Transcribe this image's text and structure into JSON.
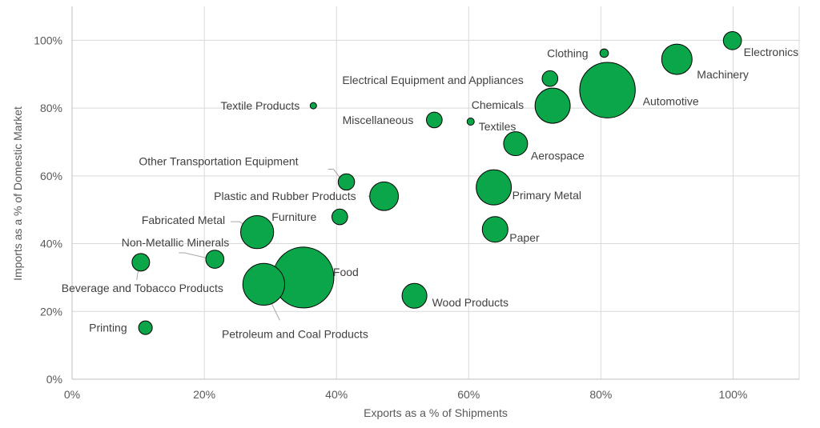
{
  "chart_data": {
    "type": "scatter",
    "bubble": true,
    "title": "",
    "xlabel": "Exports as a % of Shipments",
    "ylabel": "Imports as a % of Domestic Market",
    "xlim": [
      0,
      1.1
    ],
    "ylim": [
      0,
      1.1
    ],
    "x_ticks": [
      {
        "value": 0,
        "label": "0%"
      },
      {
        "value": 0.2,
        "label": "20%"
      },
      {
        "value": 0.4,
        "label": "40%"
      },
      {
        "value": 0.6,
        "label": "60%"
      },
      {
        "value": 0.8,
        "label": "80%"
      },
      {
        "value": 1.0,
        "label": "100%"
      }
    ],
    "y_ticks": [
      {
        "value": 0,
        "label": "0%"
      },
      {
        "value": 0.2,
        "label": "20%"
      },
      {
        "value": 0.4,
        "label": "40%"
      },
      {
        "value": 0.6,
        "label": "60%"
      },
      {
        "value": 0.8,
        "label": "80%"
      },
      {
        "value": 1.0,
        "label": "100%"
      }
    ],
    "grid": {
      "vertical": true,
      "horizontal": true
    },
    "bubble_color": "#0ca64a",
    "bubble_stroke": "#000000",
    "points": [
      {
        "name": "Electronics",
        "x": 0.999,
        "y": 0.999,
        "size": 1.6
      },
      {
        "name": "Machinery",
        "x": 0.915,
        "y": 0.944,
        "size": 4.5
      },
      {
        "name": "Clothing",
        "x": 0.805,
        "y": 0.962,
        "size": 0.35
      },
      {
        "name": "Automotive",
        "x": 0.81,
        "y": 0.853,
        "size": 15.0
      },
      {
        "name": "Electrical Equipment and Appliances",
        "x": 0.723,
        "y": 0.887,
        "size": 1.2
      },
      {
        "name": "Chemicals",
        "x": 0.727,
        "y": 0.807,
        "size": 6.0
      },
      {
        "name": "Textile Products",
        "x": 0.365,
        "y": 0.807,
        "size": 0.2
      },
      {
        "name": "Miscellaneous",
        "x": 0.548,
        "y": 0.765,
        "size": 1.2
      },
      {
        "name": "Textiles",
        "x": 0.603,
        "y": 0.76,
        "size": 0.25
      },
      {
        "name": "Aerospace",
        "x": 0.671,
        "y": 0.695,
        "size": 2.8
      },
      {
        "name": "Other Transportation Equipment",
        "x": 0.415,
        "y": 0.582,
        "size": 1.3
      },
      {
        "name": "Plastic and Rubber Products",
        "x": 0.472,
        "y": 0.54,
        "size": 4.0
      },
      {
        "name": "Primary Metal",
        "x": 0.638,
        "y": 0.566,
        "size": 6.0
      },
      {
        "name": "Furniture",
        "x": 0.405,
        "y": 0.479,
        "size": 1.2
      },
      {
        "name": "Fabricated Metal",
        "x": 0.28,
        "y": 0.434,
        "size": 5.3
      },
      {
        "name": "Paper",
        "x": 0.64,
        "y": 0.442,
        "size": 3.2
      },
      {
        "name": "Non-Metallic Minerals",
        "x": 0.216,
        "y": 0.354,
        "size": 1.6
      },
      {
        "name": "Beverage and Tobacco Products",
        "x": 0.104,
        "y": 0.345,
        "size": 1.5
      },
      {
        "name": "Food",
        "x": 0.35,
        "y": 0.3,
        "size": 18.0
      },
      {
        "name": "Petroleum and Coal Products",
        "x": 0.29,
        "y": 0.28,
        "size": 8.5
      },
      {
        "name": "Wood Products",
        "x": 0.518,
        "y": 0.246,
        "size": 3.0
      },
      {
        "name": "Printing",
        "x": 0.111,
        "y": 0.152,
        "size": 0.9
      }
    ]
  }
}
